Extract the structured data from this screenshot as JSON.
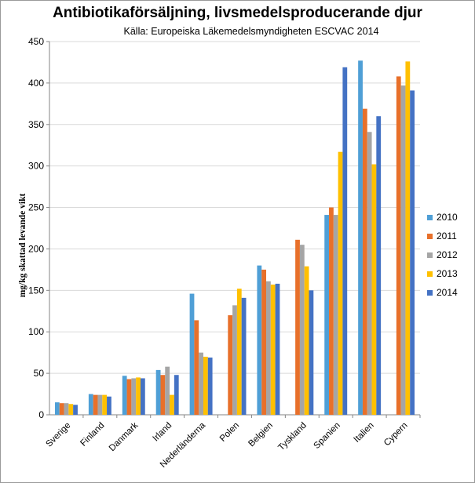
{
  "chart_data": {
    "type": "bar",
    "title": "Antibiotikaförsäljning,  livsmedelsproducerande  djur",
    "subtitle": "Källa: Europeiska Läkemedelsmyndigheten ESCVAC 2014",
    "xlabel": "",
    "ylabel": "mg/kg skattad levande vikt",
    "ylim": [
      0,
      450
    ],
    "yticks": [
      0,
      50,
      100,
      150,
      200,
      250,
      300,
      350,
      400,
      450
    ],
    "grid": true,
    "legend_position": "right",
    "categories": [
      "Sverige",
      "Finland",
      "Danmark",
      "Irland",
      "Nederländerna",
      "Polen",
      "Belgien",
      "Tyskland",
      "Spanien",
      "Italien",
      "Cypern"
    ],
    "series": [
      {
        "name": "2010",
        "color": "#4f9fd6",
        "values": [
          15,
          25,
          47,
          54,
          146,
          null,
          180,
          null,
          241,
          427,
          null
        ]
      },
      {
        "name": "2011",
        "color": "#e8702a",
        "values": [
          14,
          24,
          43,
          48,
          114,
          120,
          175,
          211,
          250,
          369,
          408
        ]
      },
      {
        "name": "2012",
        "color": "#a5a5a5",
        "values": [
          14,
          24,
          44,
          58,
          75,
          132,
          161,
          205,
          241,
          341,
          397
        ]
      },
      {
        "name": "2013",
        "color": "#ffc000",
        "values": [
          13,
          24,
          45,
          24,
          70,
          152,
          157,
          179,
          317,
          302,
          426
        ]
      },
      {
        "name": "2014",
        "color": "#4472c4",
        "values": [
          12,
          22,
          44,
          48,
          69,
          141,
          158,
          150,
          419,
          360,
          391
        ]
      }
    ]
  }
}
